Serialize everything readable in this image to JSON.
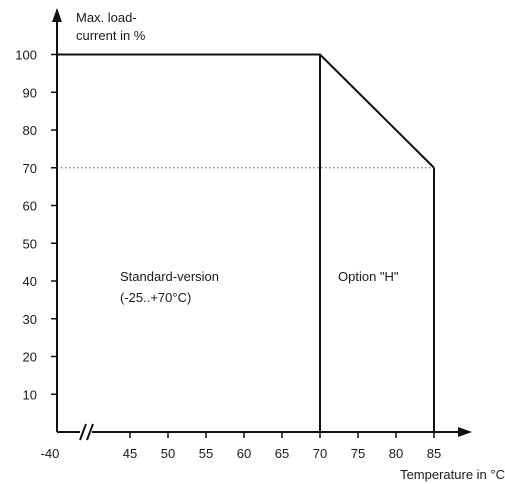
{
  "chart_data": {
    "type": "line",
    "title": "",
    "ylabel_line1": "Max. load-",
    "ylabel_line2": "current in %",
    "xlabel": "Temperature in °C",
    "x_tick_labels": [
      "-40",
      "45",
      "50",
      "55",
      "60",
      "65",
      "70",
      "75",
      "80",
      "85"
    ],
    "y_tick_labels": [
      "10",
      "20",
      "30",
      "40",
      "50",
      "60",
      "70",
      "80",
      "90",
      "100"
    ],
    "xlim": [
      -40,
      85
    ],
    "ylim": [
      0,
      100
    ],
    "axis_break": "between -40 and 45",
    "grid": false,
    "series": [
      {
        "points": [
          {
            "x": -40,
            "y": 100
          },
          {
            "x": 70,
            "y": 100
          },
          {
            "x": 85,
            "y": 70
          }
        ]
      }
    ],
    "reference_line": {
      "y": 70,
      "style": "dotted"
    },
    "vertical_lines": [
      70,
      85
    ],
    "regions": [
      {
        "line1": "Standard-version",
        "line2": "(-25..+70°C)"
      },
      {
        "line1": "Option \"H\"",
        "line2": ""
      }
    ],
    "colors": {
      "line": "#111111",
      "axis": "#111111",
      "text": "#1a1a1a",
      "reference_line": "#555555"
    }
  }
}
